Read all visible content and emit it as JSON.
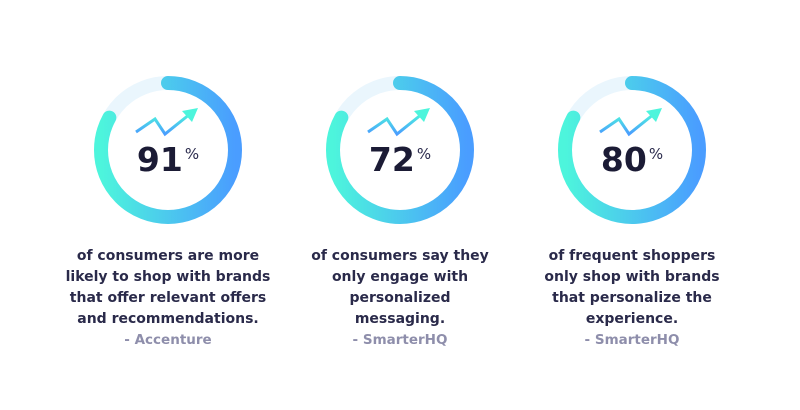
{
  "stats": [
    {
      "value": "91",
      "unit": "%",
      "lines": [
        "of consumers are more",
        "likely to shop with brands",
        "that offer relevant offers",
        "and recommendations."
      ],
      "source": "- Accenture"
    },
    {
      "value": "72",
      "unit": "%",
      "lines": [
        "of consumers say they",
        "only engage with",
        "personalized",
        "messaging."
      ],
      "source": "- SmarterHQ"
    },
    {
      "value": "80",
      "unit": "%",
      "lines": [
        "of frequent shoppers",
        "only shop with brands",
        "that personalize the",
        "experience."
      ],
      "source": "- SmarterHQ"
    }
  ],
  "icons": {
    "trend": "trend-up-arrow-icon"
  },
  "colors": {
    "gradient_top": "#4df5dc",
    "gradient_bottom": "#4a9dff",
    "track": "#eaf6fd",
    "text": "#2a2a4a",
    "source": "#8e8eab"
  }
}
